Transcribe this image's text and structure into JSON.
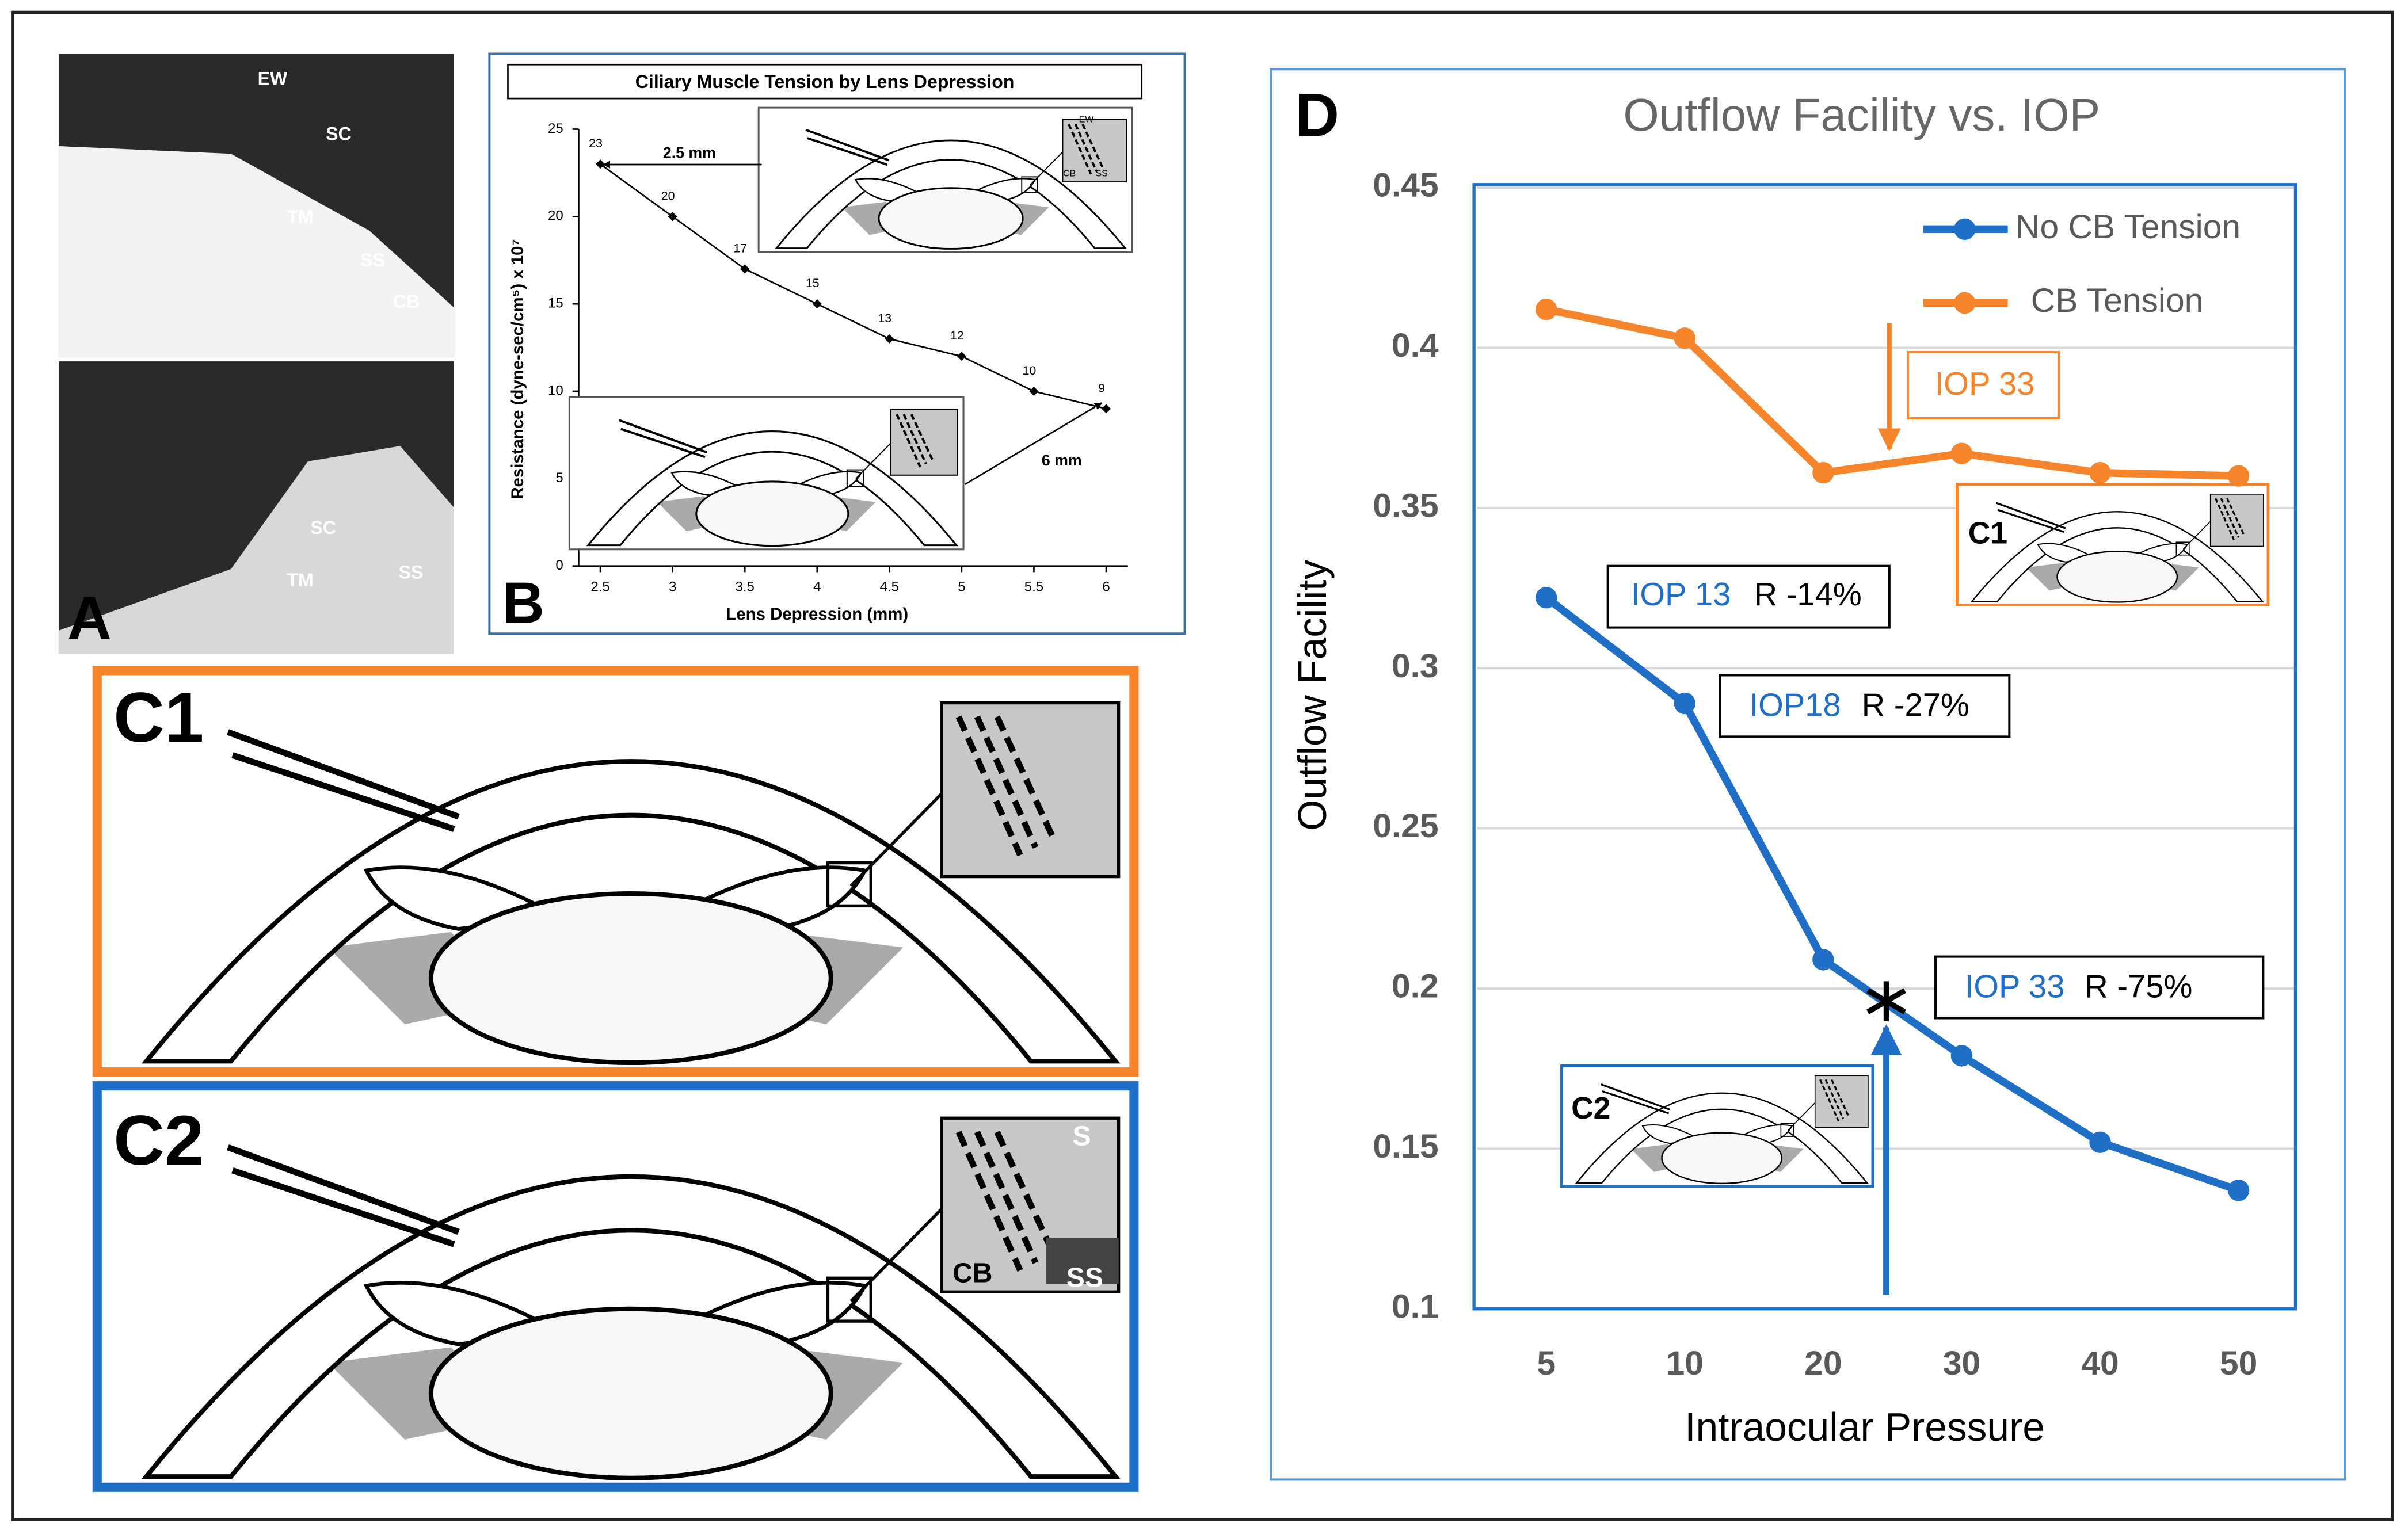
{
  "chart_data": [
    {
      "type": "line",
      "title": "Ciliary Muscle Tension by Lens Depression",
      "x": [
        2.5,
        3,
        3.5,
        4,
        4.5,
        5,
        5.5,
        6
      ],
      "values": [
        23,
        20,
        17,
        15,
        13,
        12,
        10,
        9
      ],
      "color": "#000000",
      "xlim": [
        2.35,
        6.15
      ],
      "xticks": [
        2.5,
        3,
        3.5,
        4,
        4.5,
        5,
        5.5,
        6
      ],
      "ylim": [
        0,
        25
      ],
      "yticks": [
        0,
        5,
        10,
        15,
        20,
        25
      ],
      "x_label": "Lens Depression (mm)",
      "y_label": "Resistance (dyne-sec/cm⁵) x 10⁷",
      "annotations": [
        "2.5 mm",
        "6 mm"
      ]
    },
    {
      "type": "line",
      "title": "Outflow Facility vs. IOP",
      "categories": [
        "5",
        "10",
        "20",
        "30",
        "40",
        "50"
      ],
      "series": [
        {
          "name": "No CB Tension",
          "color": "#1f6fc6",
          "values": [
            0.322,
            0.289,
            0.209,
            0.179,
            0.152,
            0.137
          ]
        },
        {
          "name": "CB Tension",
          "color": "#f5842a",
          "values": [
            0.412,
            0.403,
            0.361,
            0.367,
            0.361,
            0.36
          ]
        }
      ],
      "ylim": [
        0.1,
        0.45
      ],
      "yticks": [
        0.1,
        0.15,
        0.2,
        0.25,
        0.3,
        0.35,
        0.4,
        0.45
      ],
      "grid": true,
      "legend": "upper right",
      "x_label": "Intraocular Pressure",
      "y_label": "Outflow Facility",
      "annotations": [
        "IOP 33",
        "IOP 13",
        "R -14%",
        "IOP18",
        "R -27%",
        "IOP 33",
        "R -75%"
      ]
    }
  ],
  "panels": {
    "A": {
      "label": "A",
      "labels": [
        "EW",
        "SC",
        "TM",
        "SS",
        "CB",
        "SC",
        "TM",
        "SS"
      ]
    },
    "B": {
      "label": "B",
      "inset_labels": [
        "EW",
        "CB",
        "SS"
      ]
    },
    "C1": {
      "label": "C1"
    },
    "C2": {
      "label": "C2",
      "inset_labels": [
        "S",
        "CB",
        "SS"
      ]
    },
    "D": {
      "label": "D",
      "inset_labels": [
        "C1",
        "C2"
      ]
    }
  }
}
